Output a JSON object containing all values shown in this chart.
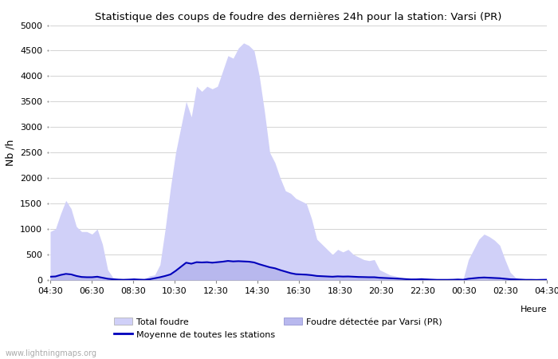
{
  "title": "Statistique des coups de foudre des dernières 24h pour la station: Varsi (PR)",
  "ylabel": "Nb /h",
  "xlabel": "Heure",
  "ylim": [
    0,
    5000
  ],
  "yticks": [
    0,
    500,
    1000,
    1500,
    2000,
    2500,
    3000,
    3500,
    4000,
    4500,
    5000
  ],
  "xtick_labels": [
    "04:30",
    "06:30",
    "08:30",
    "10:30",
    "12:30",
    "14:30",
    "16:30",
    "18:30",
    "20:30",
    "22:30",
    "00:30",
    "02:30",
    "04:30"
  ],
  "watermark": "www.lightningmaps.org",
  "bg_color": "#ffffff",
  "fill_total_color": "#d0d0f8",
  "fill_varsi_color": "#b8b8ee",
  "line_color": "#0000bb",
  "total_foudre": [
    950,
    1000,
    1300,
    1560,
    1400,
    1050,
    950,
    950,
    900,
    1000,
    700,
    200,
    50,
    30,
    20,
    30,
    50,
    30,
    20,
    80,
    100,
    300,
    1000,
    1800,
    2500,
    3000,
    3500,
    3200,
    3800,
    3700,
    3800,
    3750,
    3800,
    4100,
    4400,
    4350,
    4550,
    4650,
    4600,
    4500,
    4000,
    3300,
    2500,
    2300,
    2000,
    1750,
    1700,
    1600,
    1550,
    1500,
    1200,
    800,
    700,
    600,
    500,
    600,
    550,
    600,
    500,
    450,
    400,
    380,
    400,
    200,
    150,
    100,
    80,
    50,
    30,
    30,
    40,
    50,
    30,
    20,
    10,
    10,
    10,
    20,
    30,
    20,
    400,
    600,
    800,
    900,
    850,
    780,
    680,
    400,
    150,
    50,
    30,
    20,
    10,
    5,
    10,
    20
  ],
  "varsi_foudre": [
    80,
    85,
    100,
    100,
    90,
    80,
    60,
    55,
    60,
    70,
    50,
    30,
    20,
    10,
    5,
    10,
    15,
    10,
    5,
    20,
    40,
    60,
    80,
    120,
    200,
    280,
    350,
    320,
    360,
    350,
    360,
    345,
    360,
    370,
    380,
    370,
    380,
    370,
    360,
    350,
    320,
    290,
    260,
    240,
    200,
    170,
    140,
    120,
    120,
    110,
    100,
    90,
    85,
    80,
    70,
    80,
    75,
    75,
    70,
    65,
    65,
    60,
    60,
    50,
    45,
    40,
    35,
    30,
    20,
    15,
    15,
    20,
    15,
    10,
    5,
    5,
    5,
    8,
    12,
    8,
    30,
    40,
    50,
    55,
    50,
    45,
    40,
    30,
    20,
    15,
    10,
    5,
    5,
    3,
    5,
    8
  ],
  "moyenne": [
    65,
    70,
    100,
    120,
    110,
    80,
    60,
    55,
    55,
    65,
    45,
    25,
    15,
    8,
    5,
    8,
    12,
    8,
    5,
    15,
    35,
    55,
    80,
    110,
    180,
    260,
    340,
    320,
    350,
    345,
    350,
    340,
    350,
    360,
    375,
    365,
    370,
    365,
    360,
    345,
    310,
    280,
    250,
    230,
    195,
    165,
    135,
    115,
    110,
    105,
    95,
    80,
    75,
    70,
    65,
    72,
    68,
    70,
    65,
    60,
    58,
    55,
    55,
    45,
    40,
    35,
    30,
    25,
    18,
    12,
    12,
    16,
    12,
    8,
    4,
    4,
    4,
    6,
    10,
    6,
    25,
    35,
    45,
    50,
    45,
    40,
    35,
    25,
    15,
    12,
    8,
    4,
    4,
    2,
    4,
    6
  ],
  "n_points": 96
}
